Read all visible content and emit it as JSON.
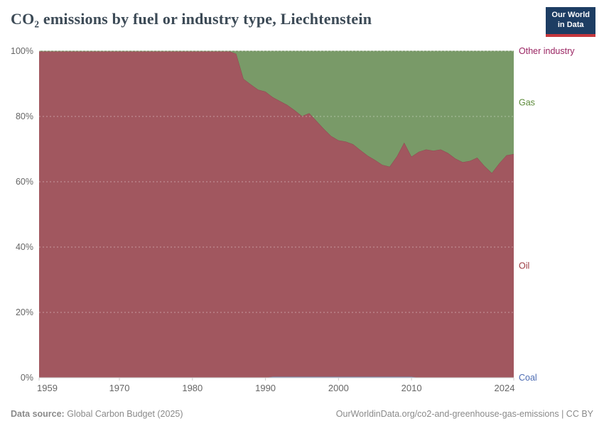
{
  "header": {
    "title": "CO₂ emissions by fuel or industry type, Liechtenstein",
    "logo_line1": "Our World",
    "logo_line2": "in Data"
  },
  "footer": {
    "source_label": "Data source:",
    "source_value": "Global Carbon Budget (2025)",
    "link": "OurWorldinData.org/co2-and-greenhouse-gas-emissions",
    "separator": "|",
    "license": "CC BY"
  },
  "chart_data": {
    "type": "area",
    "stacked": true,
    "percent_mode": true,
    "title": "CO₂ emissions by fuel or industry type, Liechtenstein",
    "xlabel": "",
    "ylabel": "",
    "x_years": {
      "start": 1959,
      "end": 2024
    },
    "x_ticks": [
      1959,
      1970,
      1980,
      1990,
      2000,
      2010,
      2024
    ],
    "y_ticks": [
      {
        "value": 0,
        "label": "0%"
      },
      {
        "value": 20,
        "label": "20%"
      },
      {
        "value": 40,
        "label": "40%"
      },
      {
        "value": 60,
        "label": "60%"
      },
      {
        "value": 80,
        "label": "80%"
      },
      {
        "value": 100,
        "label": "100%"
      }
    ],
    "ylim": [
      0,
      100
    ],
    "grid": "dashed-horizontal-over-areas",
    "legend_position": "right-edge-series-labels",
    "series": [
      {
        "name": "Coal",
        "fill": "#8b9dc1",
        "stroke": "#7588ad",
        "label_color": "#4c6bb2",
        "values": [
          0,
          0,
          0,
          0,
          0,
          0,
          0,
          0,
          0,
          0,
          0,
          0,
          0,
          0,
          0,
          0,
          0,
          0,
          0,
          0,
          0,
          0,
          0,
          0,
          0,
          0,
          0,
          0,
          0,
          0,
          0,
          0,
          0.3,
          0.3,
          0.3,
          0.3,
          0.3,
          0.3,
          0.3,
          0.3,
          0.3,
          0.3,
          0.3,
          0.3,
          0.3,
          0.3,
          0.3,
          0.3,
          0.3,
          0.3,
          0.3,
          0.3,
          0,
          0,
          0,
          0,
          0,
          0,
          0,
          0,
          0,
          0,
          0,
          0,
          0,
          0
        ]
      },
      {
        "name": "Oil",
        "fill": "#a1575f",
        "stroke": "#8d4b51",
        "label_color": "#9c3a40",
        "values": [
          100,
          100,
          100,
          100,
          100,
          100,
          100,
          100,
          100,
          100,
          100,
          100,
          100,
          100,
          100,
          100,
          100,
          100,
          100,
          100,
          100,
          100,
          100,
          100,
          100,
          100,
          100,
          99.2,
          91.5,
          89.8,
          88.2,
          87.6,
          85.6,
          84.4,
          83.2,
          81.6,
          79.8,
          80.7,
          78.3,
          75.9,
          73.7,
          72.4,
          72.0,
          71.2,
          69.4,
          67.7,
          66.4,
          64.9,
          64.3,
          67.5,
          71.7,
          67.4,
          69.2,
          69.9,
          69.5,
          69.9,
          68.8,
          67.1,
          66.0,
          66.4,
          67.4,
          64.8,
          62.7,
          65.6,
          68.1,
          68.5
        ]
      },
      {
        "name": "Gas",
        "fill": "#799a68",
        "stroke": "#6a8b58",
        "label_color": "#5b8a38",
        "values": [
          0,
          0,
          0,
          0,
          0,
          0,
          0,
          0,
          0,
          0,
          0,
          0,
          0,
          0,
          0,
          0,
          0,
          0,
          0,
          0,
          0,
          0,
          0,
          0,
          0,
          0,
          0,
          0.8,
          8.5,
          10.2,
          11.8,
          12.4,
          14.1,
          15.3,
          16.5,
          18.1,
          19.9,
          19.0,
          21.4,
          23.8,
          26.0,
          27.3,
          27.7,
          28.5,
          30.3,
          32.0,
          33.3,
          34.8,
          35.4,
          32.2,
          28.0,
          32.3,
          30.8,
          30.1,
          30.5,
          30.1,
          31.2,
          32.9,
          34.0,
          33.6,
          32.6,
          35.2,
          37.3,
          34.4,
          31.9,
          31.5
        ]
      },
      {
        "name": "Other industry",
        "fill": "#b15073",
        "stroke": "#b15073",
        "label_color": "#9a2462",
        "values": [
          0,
          0,
          0,
          0,
          0,
          0,
          0,
          0,
          0,
          0,
          0,
          0,
          0,
          0,
          0,
          0,
          0,
          0,
          0,
          0,
          0,
          0,
          0,
          0,
          0,
          0,
          0,
          0,
          0,
          0,
          0,
          0,
          0,
          0,
          0,
          0,
          0,
          0,
          0,
          0,
          0,
          0,
          0,
          0,
          0,
          0,
          0,
          0,
          0,
          0,
          0,
          0,
          0,
          0,
          0,
          0,
          0,
          0,
          0,
          0,
          0,
          0,
          0,
          0,
          0,
          0
        ]
      }
    ]
  },
  "colors": {
    "grid_over_fill": "rgba(255,255,255,0.40)",
    "axis_line": "#cccccc",
    "tick_label": "#666666",
    "footer_text": "#8a8a8a",
    "logo_bg": "#1d3d63",
    "logo_red": "#c5373d"
  }
}
